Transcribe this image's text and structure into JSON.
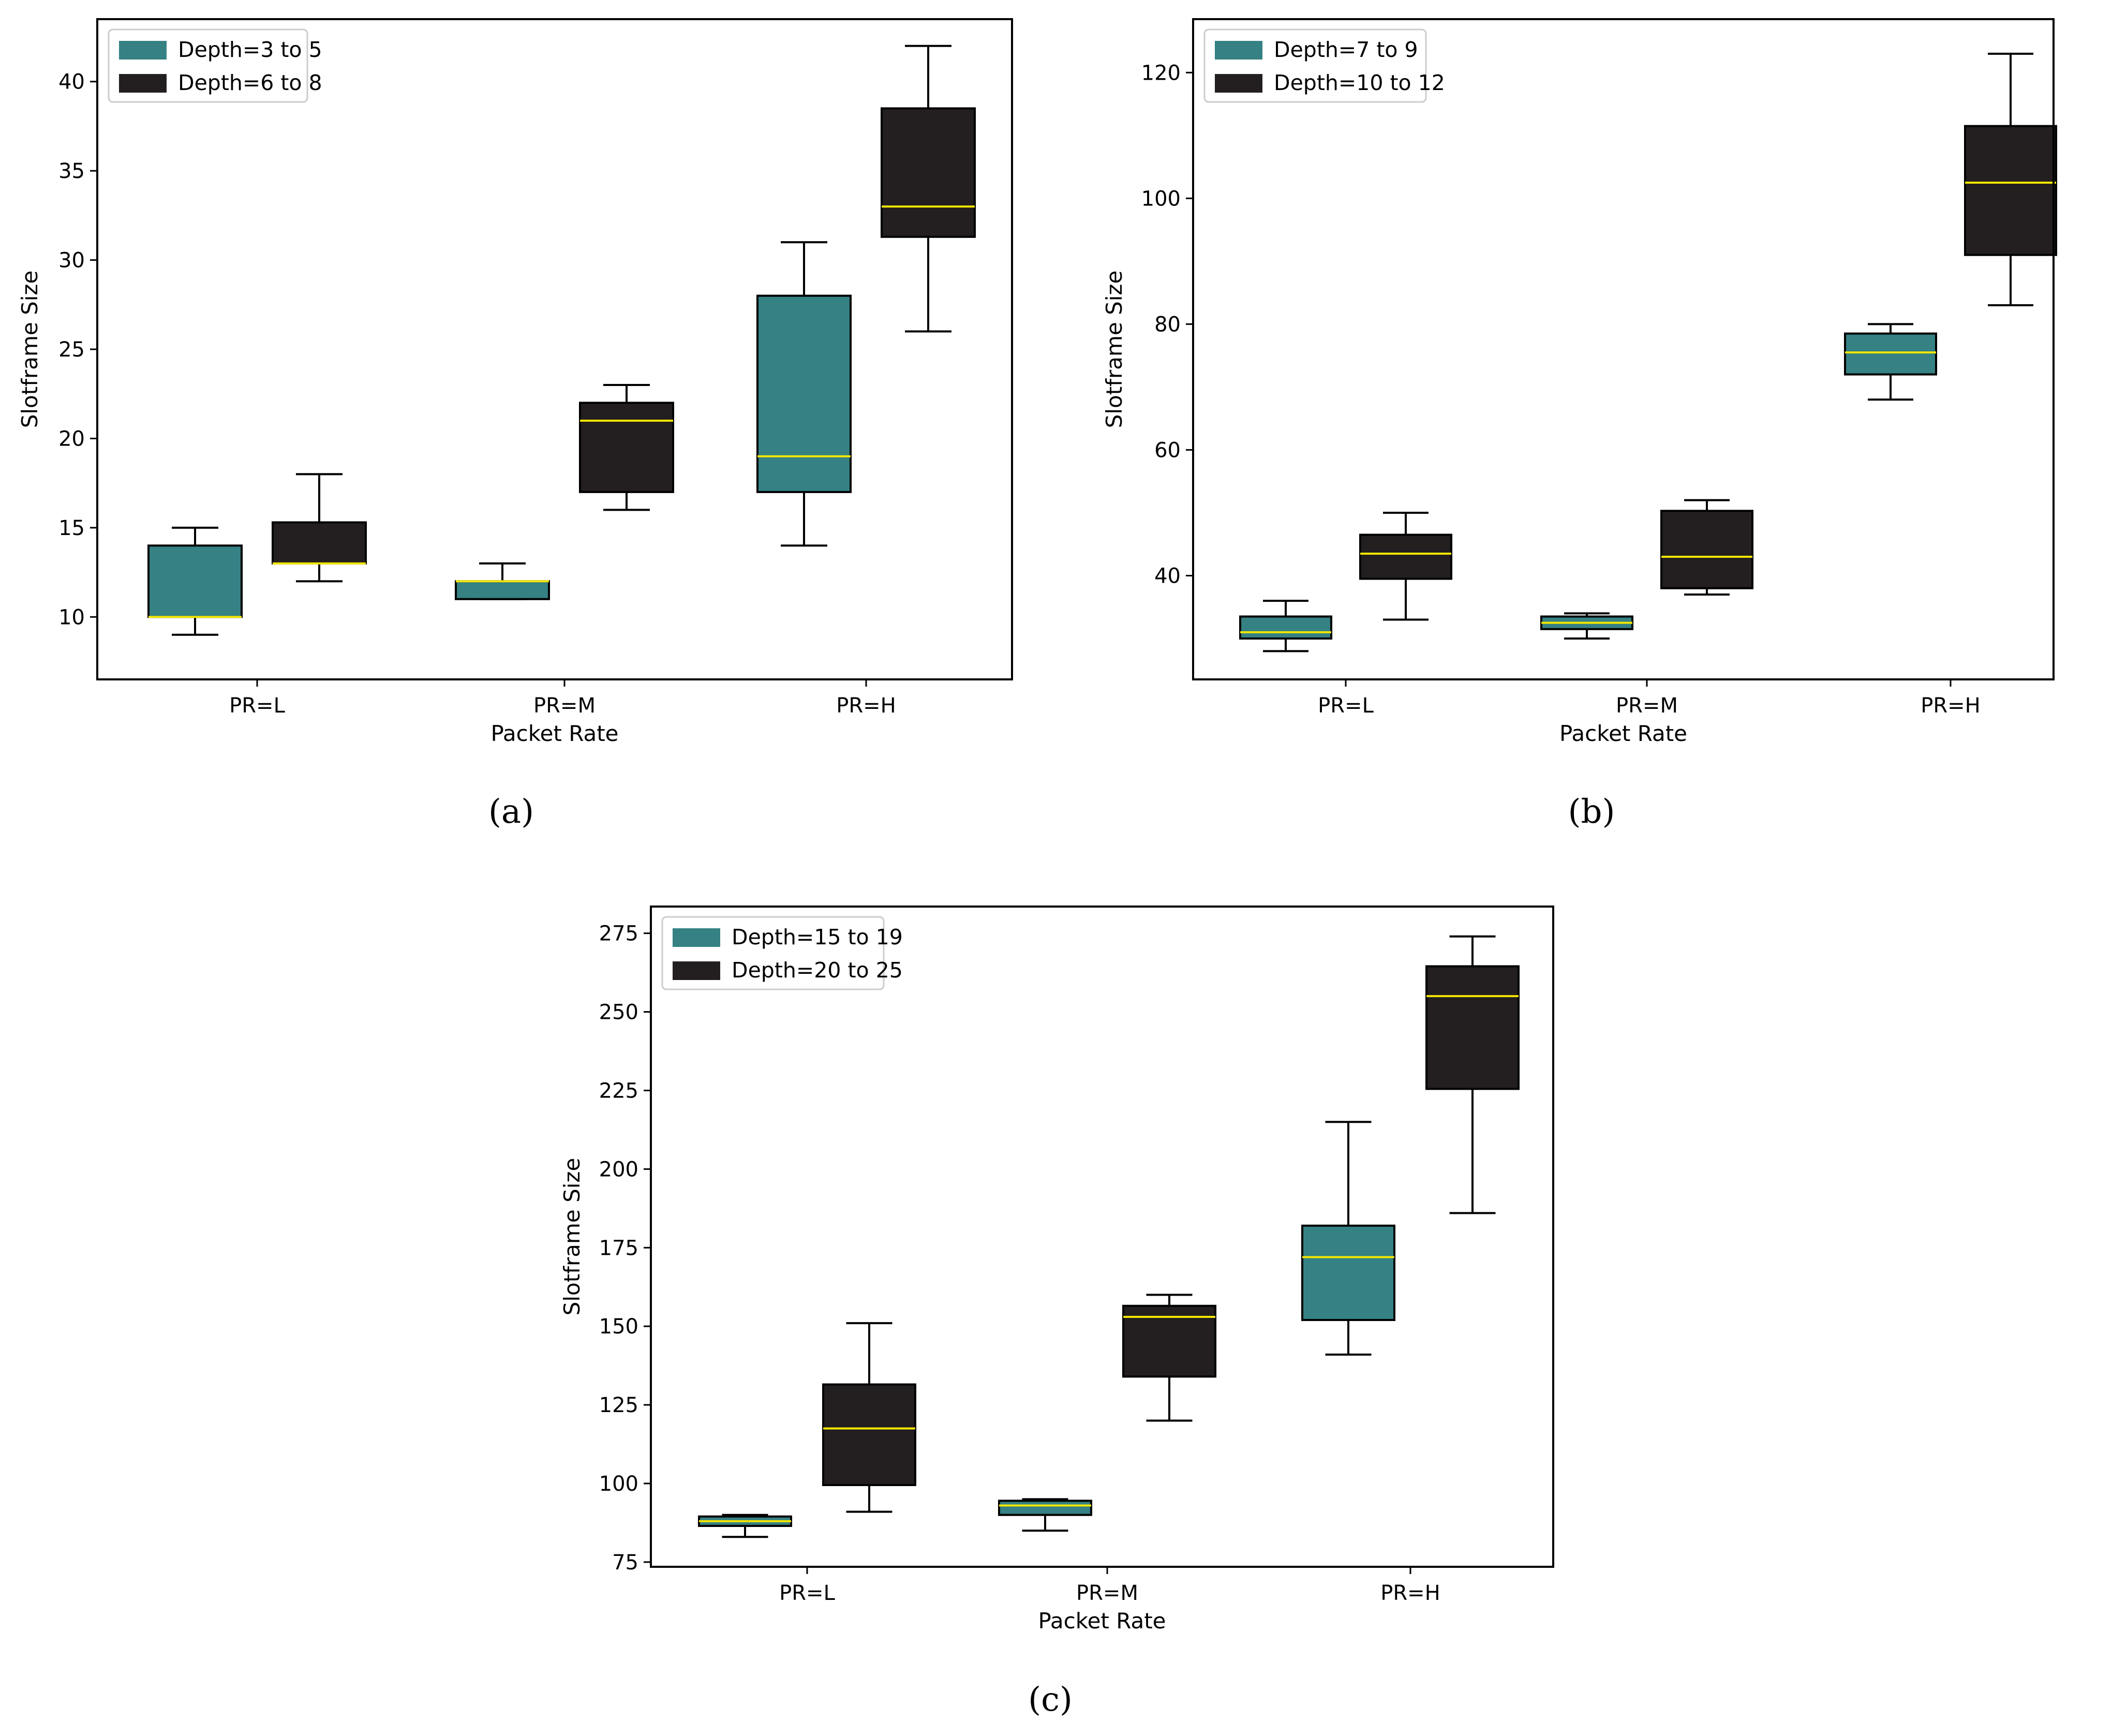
{
  "colors": {
    "teal": "#358183",
    "dark": "#231f20",
    "median": "#f2e600",
    "frame": "#000000"
  },
  "chart_data": [
    {
      "type": "box",
      "panel_label": "(a)",
      "categories": [
        "PR=L",
        "PR=M",
        "PR=H"
      ],
      "xlabel": "Packet Rate",
      "ylabel": "Slotframe Size",
      "ylim": [
        6.5,
        43.5
      ],
      "yticks": [
        "10",
        "15",
        "20",
        "25",
        "30",
        "35",
        "40"
      ],
      "legend_position": "top-left",
      "series": [
        {
          "name": "Depth=3 to 5",
          "color": "teal",
          "boxes": [
            {
              "whislo": 9,
              "q1": 10,
              "med": 10,
              "q3": 14,
              "whishi": 15
            },
            {
              "whislo": 11,
              "q1": 11,
              "med": 12,
              "q3": 12,
              "whishi": 13
            },
            {
              "whislo": 14,
              "q1": 17,
              "med": 19,
              "q3": 28,
              "whishi": 31
            }
          ]
        },
        {
          "name": "Depth=6 to 8",
          "color": "dark",
          "boxes": [
            {
              "whislo": 12,
              "q1": 13,
              "med": 13,
              "q3": 15.3,
              "whishi": 18
            },
            {
              "whislo": 16,
              "q1": 17,
              "med": 21,
              "q3": 22,
              "whishi": 23
            },
            {
              "whislo": 26,
              "q1": 31.3,
              "med": 33,
              "q3": 38.5,
              "whishi": 42
            }
          ]
        }
      ]
    },
    {
      "type": "box",
      "panel_label": "(b)",
      "categories": [
        "PR=L",
        "PR=M",
        "PR=H"
      ],
      "xlabel": "Packet Rate",
      "ylabel": "Slotframe Size",
      "ylim": [
        23.5,
        128.5
      ],
      "yticks": [
        "40",
        "60",
        "80",
        "100",
        "120"
      ],
      "legend_position": "top-left",
      "series": [
        {
          "name": "Depth=7 to 9",
          "color": "teal",
          "boxes": [
            {
              "whislo": 28,
              "q1": 30,
              "med": 31,
              "q3": 33.5,
              "whishi": 36
            },
            {
              "whislo": 30,
              "q1": 31.5,
              "med": 32.5,
              "q3": 33.5,
              "whishi": 34
            },
            {
              "whislo": 68,
              "q1": 72,
              "med": 75.5,
              "q3": 78.5,
              "whishi": 80
            }
          ]
        },
        {
          "name": "Depth=10 to 12",
          "color": "dark",
          "boxes": [
            {
              "whislo": 33,
              "q1": 39.5,
              "med": 43.5,
              "q3": 46.5,
              "whishi": 50
            },
            {
              "whislo": 37,
              "q1": 38,
              "med": 43,
              "q3": 50.3,
              "whishi": 52
            },
            {
              "whislo": 83,
              "q1": 91,
              "med": 102.5,
              "q3": 111.5,
              "whishi": 123
            }
          ]
        }
      ]
    },
    {
      "type": "box",
      "panel_label": "(c)",
      "categories": [
        "PR=L",
        "PR=M",
        "PR=H"
      ],
      "xlabel": "Packet Rate",
      "ylabel": "Slotframe Size",
      "ylim": [
        73.5,
        283.5
      ],
      "yticks": [
        "75",
        "100",
        "125",
        "150",
        "175",
        "200",
        "225",
        "250",
        "275"
      ],
      "legend_position": "top-left",
      "series": [
        {
          "name": "Depth=15 to 19",
          "color": "teal",
          "boxes": [
            {
              "whislo": 83,
              "q1": 86.5,
              "med": 88,
              "q3": 89.5,
              "whishi": 90
            },
            {
              "whislo": 85,
              "q1": 90,
              "med": 93,
              "q3": 94.5,
              "whishi": 95
            },
            {
              "whislo": 141,
              "q1": 152,
              "med": 172,
              "q3": 182,
              "whishi": 215
            }
          ]
        },
        {
          "name": "Depth=20 to 25",
          "color": "dark",
          "boxes": [
            {
              "whislo": 91,
              "q1": 99.5,
              "med": 117.5,
              "q3": 131.5,
              "whishi": 151
            },
            {
              "whislo": 120,
              "q1": 134,
              "med": 153,
              "q3": 156.5,
              "whishi": 160
            },
            {
              "whislo": 186,
              "q1": 225.5,
              "med": 255,
              "q3": 264.5,
              "whishi": 274
            }
          ]
        }
      ]
    }
  ]
}
